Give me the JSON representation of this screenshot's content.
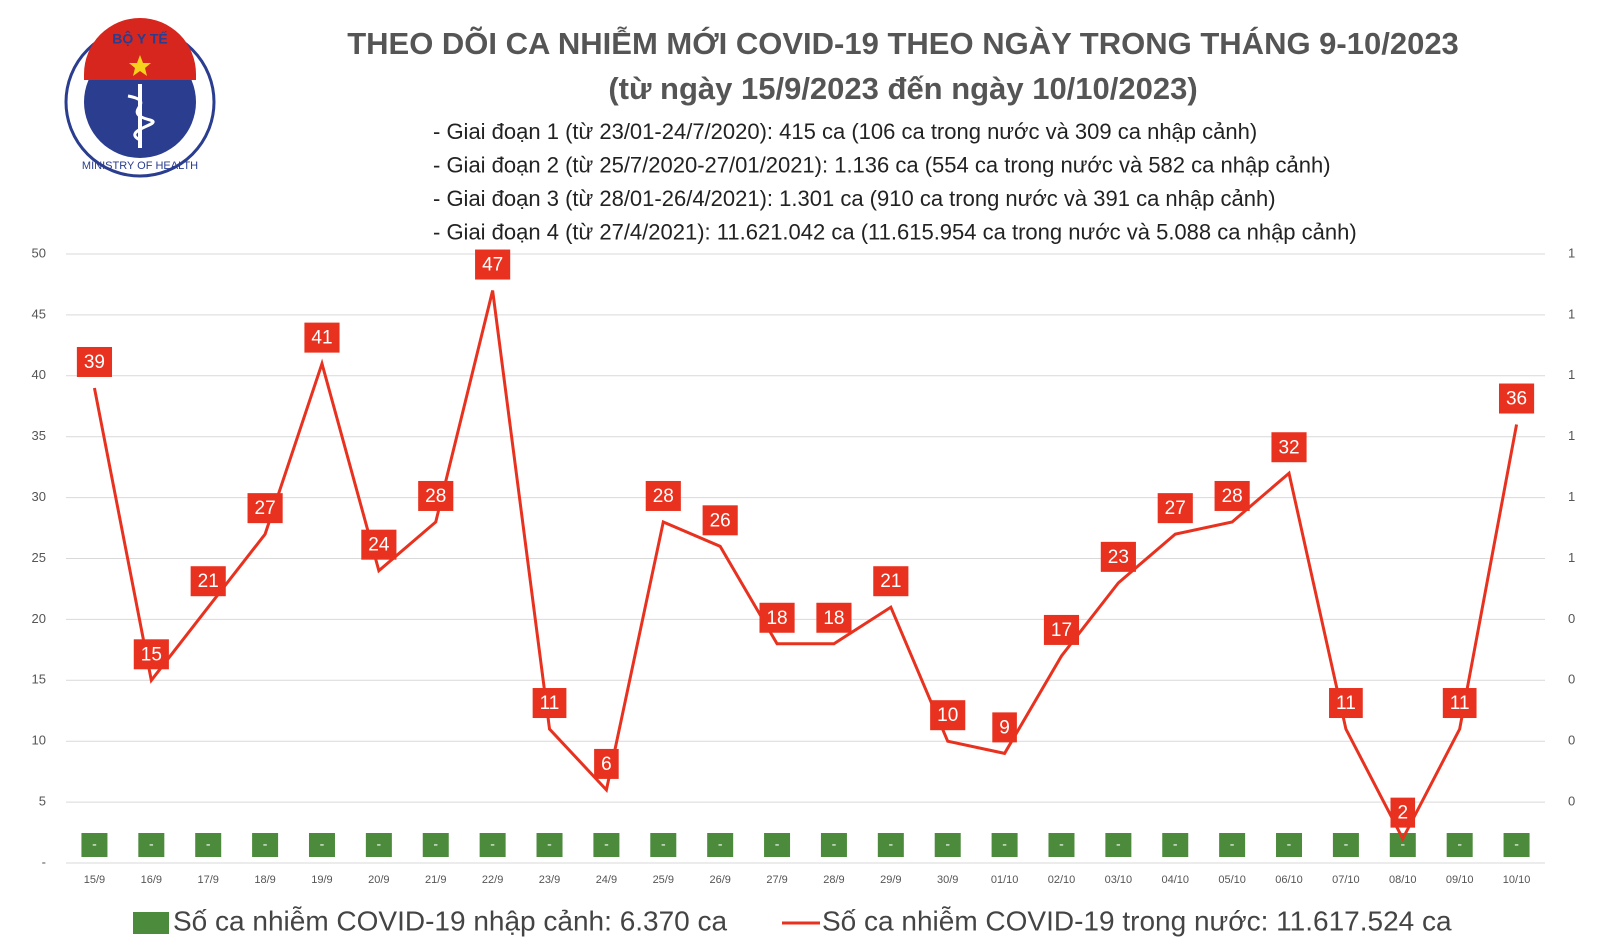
{
  "logo": {
    "top_text": "BỘ Y TẾ",
    "bottom_text": "MINISTRY OF HEALTH"
  },
  "chart_data": {
    "type": "line",
    "title": "THEO DÕI CA NHIỄM MỚI COVID-19 THEO NGÀY TRONG THÁNG 9-10/2023",
    "subtitle": "(từ ngày 15/9/2023 đến ngày 10/10/2023)",
    "notes": [
      "- Giai đoạn 1 (từ 23/01-24/7/2020): 415 ca (106 ca trong nước và 309 ca nhập cảnh)",
      "- Giai đoạn 2 (từ 25/7/2020-27/01/2021): 1.136 ca (554 ca trong nước và 582 ca nhập cảnh)",
      "- Giai đoạn 3 (từ 28/01-26/4/2021): 1.301 ca (910 ca trong nước và 391 ca nhập cảnh)",
      "- Giai đoạn 4 (từ 27/4/2021): 11.621.042 ca (11.615.954 ca trong nước và 5.088 ca nhập cảnh)"
    ],
    "categories": [
      "15/9",
      "16/9",
      "17/9",
      "18/9",
      "19/9",
      "20/9",
      "21/9",
      "22/9",
      "23/9",
      "24/9",
      "25/9",
      "26/9",
      "27/9",
      "28/9",
      "29/9",
      "30/9",
      "01/10",
      "02/10",
      "03/10",
      "04/10",
      "05/10",
      "06/10",
      "07/10",
      "08/10",
      "09/10",
      "10/10"
    ],
    "series": [
      {
        "name": "Số ca nhiễm COVID-19 nhập cảnh: 6.370 ca",
        "color": "#4b8b3b",
        "axis": "y2",
        "kind": "bar",
        "values": [
          0,
          0,
          0,
          0,
          0,
          0,
          0,
          0,
          0,
          0,
          0,
          0,
          0,
          0,
          0,
          0,
          0,
          0,
          0,
          0,
          0,
          0,
          0,
          0,
          0,
          0
        ],
        "value_labels": [
          "-",
          "-",
          "-",
          "-",
          "-",
          "-",
          "-",
          "-",
          "-",
          "-",
          "-",
          "-",
          "-",
          "-",
          "-",
          "-",
          "-",
          "-",
          "-",
          "-",
          "-",
          "-",
          "-",
          "-",
          "-",
          "-"
        ]
      },
      {
        "name": "Số ca nhiễm COVID-19 trong nước: 11.617.524 ca",
        "color": "#e8321f",
        "kind": "line",
        "values": [
          39,
          15,
          21,
          27,
          41,
          24,
          28,
          47,
          11,
          6,
          28,
          26,
          18,
          18,
          21,
          10,
          9,
          17,
          23,
          27,
          28,
          32,
          11,
          2,
          11,
          36
        ]
      }
    ],
    "ylim": [
      0,
      50
    ],
    "yticks": [
      {
        "value": 0,
        "label": "-"
      },
      5,
      10,
      15,
      20,
      25,
      30,
      35,
      40,
      45,
      50
    ],
    "y2lim": [
      0,
      1
    ],
    "y2ticks": [
      {
        "value": 0.1,
        "label": "0"
      },
      {
        "value": 0.2,
        "label": "0"
      },
      {
        "value": 0.3,
        "label": "0"
      },
      {
        "value": 0.4,
        "label": "0"
      },
      {
        "value": 0.5,
        "label": "1"
      },
      {
        "value": 0.6,
        "label": "1"
      },
      {
        "value": 0.7,
        "label": "1"
      },
      {
        "value": 0.8,
        "label": "1"
      },
      {
        "value": 0.9,
        "label": "1"
      },
      {
        "value": 1.0,
        "label": "1"
      }
    ],
    "grid": true,
    "legend": "bottom"
  }
}
